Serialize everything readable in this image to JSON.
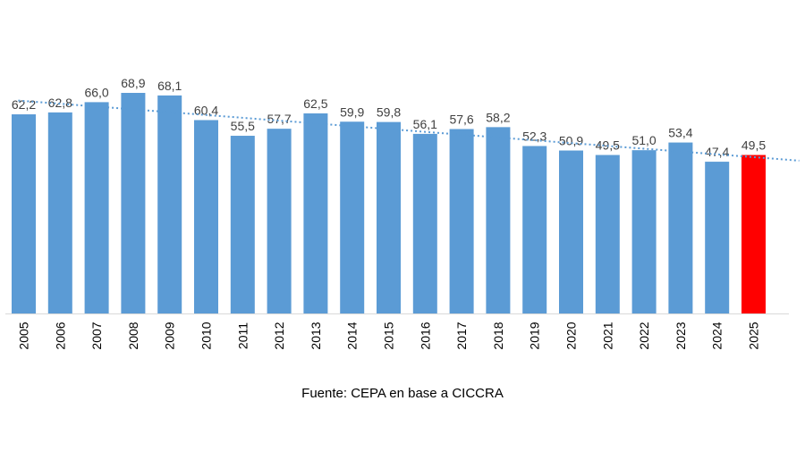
{
  "chart_data": {
    "type": "bar",
    "title": "",
    "xlabel": "",
    "ylabel": "",
    "categories": [
      "2005",
      "2006",
      "2007",
      "2008",
      "2009",
      "2010",
      "2011",
      "2012",
      "2013",
      "2014",
      "2015",
      "2016",
      "2017",
      "2018",
      "2019",
      "2020",
      "2021",
      "2022",
      "2023",
      "2024",
      "2025"
    ],
    "values": [
      62.2,
      62.8,
      66.0,
      68.9,
      68.1,
      60.4,
      55.5,
      57.7,
      62.5,
      59.9,
      59.8,
      56.1,
      57.6,
      58.2,
      52.3,
      50.9,
      49.5,
      51.0,
      53.4,
      47.4,
      49.5
    ],
    "value_labels": [
      "62,2",
      "62,8",
      "66,0",
      "68,9",
      "68,1",
      "60,4",
      "55,5",
      "57,7",
      "62,5",
      "59,9",
      "59,8",
      "56,1",
      "57,6",
      "58,2",
      "52,3",
      "50,9",
      "49,5",
      "51,0",
      "53,4",
      "47,4",
      "49,5"
    ],
    "ylim": [
      0,
      68.9
    ],
    "highlight_index": 20,
    "bar_color": "#5B9BD5",
    "highlight_color": "#FF0000",
    "trendline": {
      "type": "linear",
      "style": "dotted",
      "color": "#5B9BD5"
    },
    "grid": false,
    "legend": "none"
  },
  "source": "Fuente: CEPA en base a CICCRA"
}
